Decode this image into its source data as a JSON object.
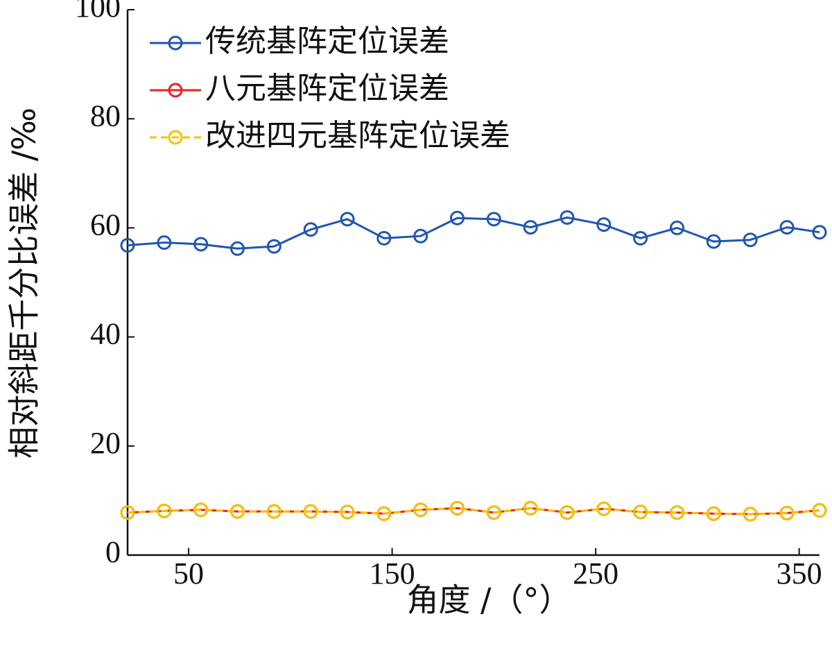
{
  "chart_data": {
    "type": "line",
    "xlabel": "角度 /（°）",
    "ylabel": "相对斜距千分比误差 /‰",
    "xlim": [
      20,
      360
    ],
    "ylim": [
      0,
      100
    ],
    "x_ticks": [
      50,
      150,
      250,
      350
    ],
    "y_ticks": [
      0,
      20,
      40,
      60,
      80,
      100
    ],
    "grid": false,
    "legend_position": "top-left",
    "x": [
      20,
      38,
      56,
      74,
      92,
      110,
      128,
      146,
      164,
      182,
      200,
      218,
      236,
      254,
      272,
      290,
      308,
      326,
      344,
      360
    ],
    "series": [
      {
        "name": "传统基阵定位误差",
        "color": "#1f56b0",
        "marker": "circle",
        "values": [
          56.8,
          57.3,
          57.0,
          56.2,
          56.6,
          59.7,
          61.6,
          58.1,
          58.5,
          61.8,
          61.6,
          60.1,
          61.9,
          60.6,
          58.1,
          60.0,
          57.5,
          57.8,
          60.1,
          59.2
        ]
      },
      {
        "name": "八元基阵定位误差",
        "color": "#e8231c",
        "marker": "circle",
        "values": [
          7.8,
          8.1,
          8.3,
          8.0,
          8.0,
          8.0,
          7.9,
          7.6,
          8.3,
          8.6,
          7.8,
          8.6,
          7.8,
          8.5,
          7.9,
          7.8,
          7.6,
          7.5,
          7.7,
          8.2
        ]
      },
      {
        "name": "改进四元基阵定位误差",
        "color": "#f2c200",
        "marker": "circle",
        "values": [
          7.8,
          8.1,
          8.3,
          8.0,
          8.0,
          8.0,
          7.9,
          7.6,
          8.3,
          8.6,
          7.8,
          8.6,
          7.8,
          8.5,
          7.9,
          7.8,
          7.6,
          7.5,
          7.7,
          8.2
        ]
      }
    ]
  }
}
